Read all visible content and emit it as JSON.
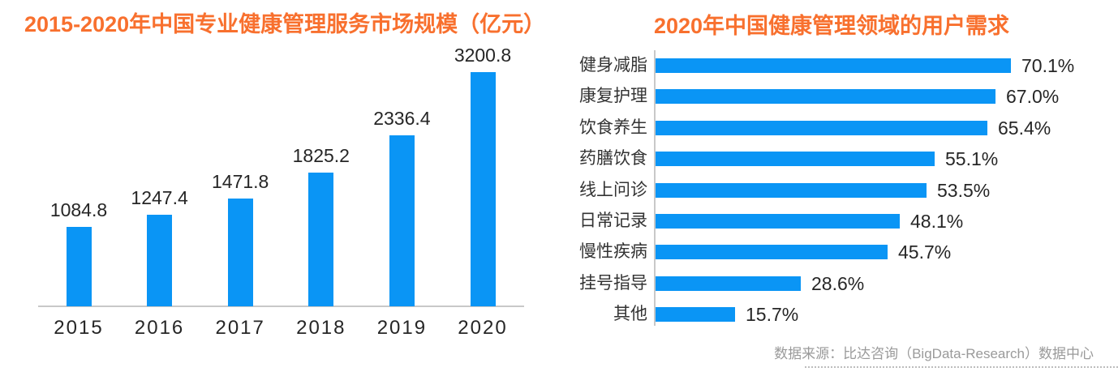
{
  "chart_data": [
    {
      "type": "bar",
      "title": "2015-2020年中国专业健康管理服务市场规模（亿元）",
      "categories": [
        "2015",
        "2016",
        "2017",
        "2018",
        "2019",
        "2020"
      ],
      "values": [
        1084.8,
        1247.4,
        1471.8,
        1825.2,
        2336.4,
        3200.8
      ],
      "value_labels": [
        "1084.8",
        "1247.4",
        "1471.8",
        "1825.2",
        "2336.4",
        "3200.8"
      ],
      "xlabel": "",
      "ylabel": "亿元",
      "ylim": [
        0,
        3500
      ],
      "grid": false,
      "legend": "none",
      "data_labels": "above-bars"
    },
    {
      "type": "bar-horizontal",
      "title": "2020年中国健康管理领域的用户需求",
      "categories": [
        "健身减脂",
        "康复护理",
        "饮食养生",
        "药膳饮食",
        "线上问诊",
        "日常记录",
        "慢性疾病",
        "挂号指导",
        "其他"
      ],
      "values": [
        70.1,
        67.0,
        65.4,
        55.1,
        53.5,
        48.1,
        45.7,
        28.6,
        15.7
      ],
      "value_labels": [
        "70.1%",
        "67.0%",
        "65.4%",
        "55.1%",
        "53.5%",
        "48.1%",
        "45.7%",
        "28.6%",
        "15.7%"
      ],
      "xlim": [
        0,
        80
      ],
      "grid": false,
      "legend": "none",
      "data_labels": "right-of-bars"
    }
  ],
  "footer": {
    "source": "数据来源：比达咨询（BigData-Research）数据中心"
  },
  "colors": {
    "bar": "#0a95f5",
    "title": "#f8702e",
    "axis": "#c8c8c8",
    "label": "#262626",
    "source_text": "#9a9a9a"
  }
}
